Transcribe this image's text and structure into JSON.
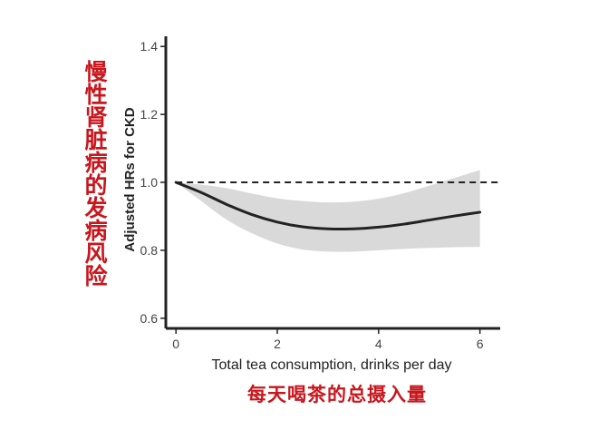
{
  "chart_data": {
    "type": "line",
    "xlabel": "Total tea consumption, drinks per day",
    "ylabel": "Adjusted HRs for CKD",
    "xlim": [
      -0.2,
      6.4
    ],
    "ylim": [
      0.57,
      1.43
    ],
    "xticks": [
      "0",
      "2",
      "4",
      "6"
    ],
    "yticks": [
      "0.6",
      "0.8",
      "1.0",
      "1.2",
      "1.4"
    ],
    "reference_line": 1.0,
    "grid": false,
    "colors": {
      "line": "#222222",
      "band": "#d9d9d9",
      "reference": "#222222",
      "annotation": "#c8161d"
    },
    "series": [
      {
        "x": [
          0,
          0.5,
          1,
          1.5,
          2,
          2.5,
          3,
          3.5,
          4,
          4.5,
          5,
          5.5,
          6
        ],
        "values": [
          1.0,
          0.97,
          0.935,
          0.905,
          0.883,
          0.869,
          0.863,
          0.863,
          0.868,
          0.877,
          0.889,
          0.901,
          0.912
        ],
        "lower": [
          1.0,
          0.945,
          0.89,
          0.85,
          0.82,
          0.802,
          0.796,
          0.796,
          0.8,
          0.804,
          0.807,
          0.809,
          0.81
        ],
        "upper": [
          1.0,
          0.993,
          0.983,
          0.967,
          0.953,
          0.945,
          0.941,
          0.943,
          0.952,
          0.968,
          0.99,
          1.013,
          1.036
        ]
      }
    ]
  },
  "annotations": {
    "y_title_cn": "慢性肾脏病的发病风险",
    "x_title_cn": "每天喝茶的总摄入量"
  }
}
